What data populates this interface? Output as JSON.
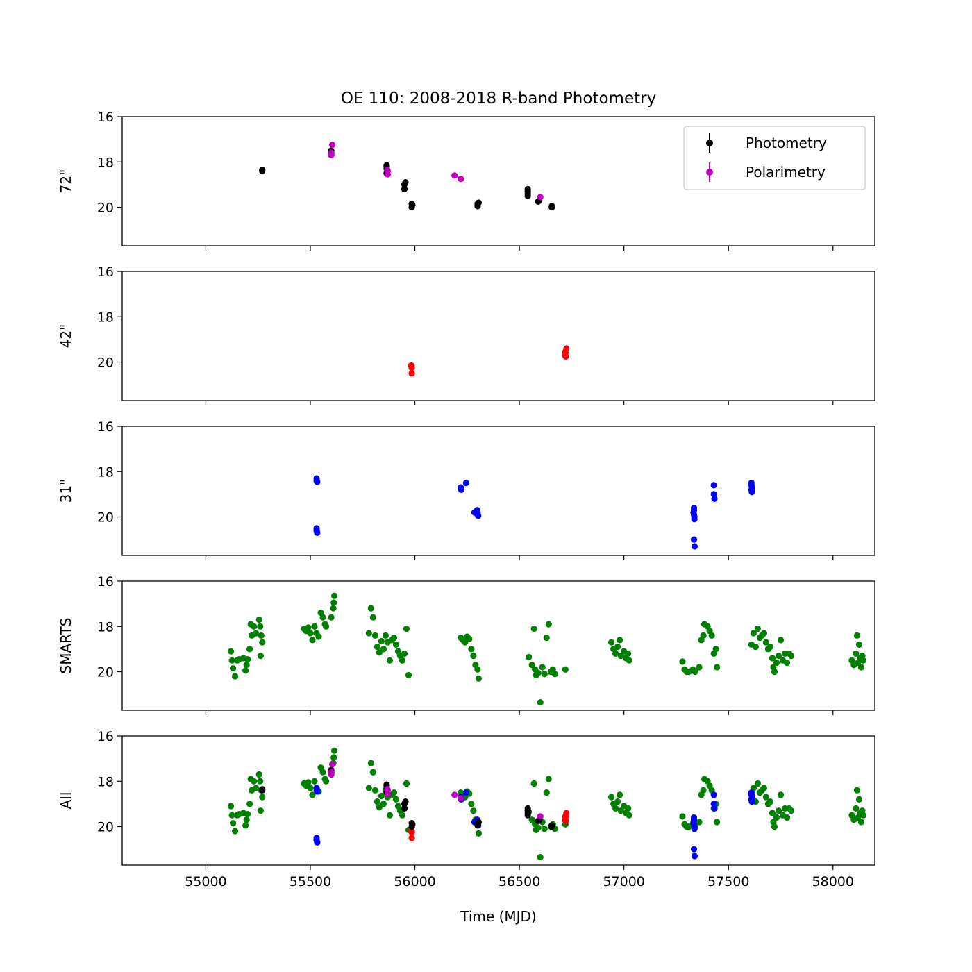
{
  "chart_data": {
    "type": "scatter",
    "title": "OE 110: 2008-2018 R-band Photometry",
    "xlabel": "Time (MJD)",
    "xlim": [
      54600,
      58200
    ],
    "x_ticks": [
      55000,
      55500,
      56000,
      56500,
      57000,
      57500,
      58000
    ],
    "ylim": [
      16,
      21.7
    ],
    "y_inverted": true,
    "y_ticks": [
      16,
      18,
      20
    ],
    "sharex": true,
    "legend": {
      "panel": "72\"",
      "placement": "top-right",
      "entries": [
        {
          "label": "Photometry",
          "color": "#000000",
          "marker": "errorbar-point"
        },
        {
          "label": "Polarimetry",
          "color": "#bf00bf",
          "marker": "errorbar-point"
        }
      ]
    },
    "colors": {
      "photometry": "#000000",
      "polarimetry": "#bf00bf",
      "42in": "#ff0000",
      "31in": "#0000ff",
      "smarts": "#008000"
    },
    "panels": [
      {
        "ylabel": "72\"",
        "series": [
          {
            "key": "photometry",
            "color": "#000000",
            "points": [
              [
                55270,
                18.4
              ],
              [
                55270,
                18.35
              ],
              [
                55600,
                17.6
              ],
              [
                55600,
                17.5
              ],
              [
                55600,
                17.65
              ],
              [
                55865,
                18.2
              ],
              [
                55865,
                18.15
              ],
              [
                55865,
                18.3
              ],
              [
                55865,
                18.5
              ],
              [
                55950,
                19.0
              ],
              [
                55950,
                19.2
              ],
              [
                55955,
                18.9
              ],
              [
                55985,
                19.85
              ],
              [
                55985,
                20.0
              ],
              [
                55988,
                19.9
              ],
              [
                56300,
                19.85
              ],
              [
                56300,
                19.95
              ],
              [
                56305,
                19.8
              ],
              [
                56540,
                19.2
              ],
              [
                56540,
                19.3
              ],
              [
                56540,
                19.5
              ],
              [
                56540,
                19.4
              ],
              [
                56590,
                19.75
              ],
              [
                56595,
                19.7
              ],
              [
                56655,
                20.0
              ],
              [
                56655,
                19.95
              ]
            ]
          },
          {
            "key": "polarimetry",
            "color": "#bf00bf",
            "points": [
              [
                55605,
                17.25
              ],
              [
                55600,
                17.7
              ],
              [
                55600,
                17.6
              ],
              [
                55870,
                18.4
              ],
              [
                55870,
                18.55
              ],
              [
                55868,
                18.35
              ],
              [
                56190,
                18.6
              ],
              [
                56220,
                18.75
              ],
              [
                56600,
                19.55
              ]
            ]
          }
        ]
      },
      {
        "ylabel": "42\"",
        "series": [
          {
            "key": "42in",
            "color": "#ff0000",
            "points": [
              [
                55985,
                20.2
              ],
              [
                55985,
                20.5
              ],
              [
                55985,
                20.25
              ],
              [
                55983,
                20.15
              ],
              [
                56720,
                19.6
              ],
              [
                56725,
                19.4
              ],
              [
                56718,
                19.7
              ],
              [
                56722,
                19.75
              ],
              [
                56720,
                19.55
              ]
            ]
          }
        ]
      },
      {
        "ylabel": "31\"",
        "series": [
          {
            "key": "31in",
            "color": "#0000ff",
            "points": [
              [
                55530,
                18.3
              ],
              [
                55530,
                18.4
              ],
              [
                55533,
                18.45
              ],
              [
                55530,
                20.5
              ],
              [
                55530,
                20.6
              ],
              [
                55533,
                20.7
              ],
              [
                56220,
                18.7
              ],
              [
                56222,
                18.8
              ],
              [
                56245,
                18.5
              ],
              [
                56285,
                19.8
              ],
              [
                56300,
                19.8
              ],
              [
                56300,
                19.9
              ],
              [
                56303,
                19.95
              ],
              [
                56298,
                19.7
              ],
              [
                57335,
                19.6
              ],
              [
                57335,
                19.7
              ],
              [
                57335,
                19.9
              ],
              [
                57337,
                20.0
              ],
              [
                57337,
                20.1
              ],
              [
                57333,
                19.8
              ],
              [
                57335,
                21.0
              ],
              [
                57338,
                21.3
              ],
              [
                57430,
                18.6
              ],
              [
                57430,
                19.0
              ],
              [
                57433,
                19.2
              ],
              [
                57610,
                18.5
              ],
              [
                57610,
                18.6
              ],
              [
                57613,
                18.7
              ],
              [
                57610,
                18.8
              ],
              [
                57612,
                18.9
              ]
            ]
          }
        ]
      },
      {
        "ylabel": "SMARTS",
        "series": [
          {
            "key": "smarts",
            "color": "#008000",
            "points": [
              [
                55120,
                19.1
              ],
              [
                55125,
                19.5
              ],
              [
                55130,
                19.85
              ],
              [
                55140,
                20.2
              ],
              [
                55150,
                19.5
              ],
              [
                55160,
                19.45
              ],
              [
                55180,
                19.4
              ],
              [
                55190,
                19.95
              ],
              [
                55195,
                19.7
              ],
              [
                55200,
                19.45
              ],
              [
                55210,
                19.0
              ],
              [
                55220,
                18.4
              ],
              [
                55215,
                17.9
              ],
              [
                55230,
                18.0
              ],
              [
                55240,
                18.3
              ],
              [
                55255,
                17.7
              ],
              [
                55260,
                18.0
              ],
              [
                55265,
                18.4
              ],
              [
                55270,
                18.7
              ],
              [
                55262,
                19.3
              ],
              [
                55470,
                18.1
              ],
              [
                55480,
                18.2
              ],
              [
                55490,
                18.05
              ],
              [
                55500,
                18.3
              ],
              [
                55510,
                18.6
              ],
              [
                55520,
                18.0
              ],
              [
                55530,
                18.3
              ],
              [
                55540,
                18.45
              ],
              [
                55550,
                17.4
              ],
              [
                55560,
                17.6
              ],
              [
                55570,
                17.9
              ],
              [
                55575,
                18.0
              ],
              [
                55600,
                17.6
              ],
              [
                55610,
                17.2
              ],
              [
                55612,
                16.95
              ],
              [
                55615,
                16.65
              ],
              [
                55780,
                18.3
              ],
              [
                55790,
                17.2
              ],
              [
                55800,
                17.6
              ],
              [
                55810,
                18.4
              ],
              [
                55820,
                18.9
              ],
              [
                55830,
                19.15
              ],
              [
                55840,
                18.65
              ],
              [
                55850,
                19.0
              ],
              [
                55860,
                18.4
              ],
              [
                55870,
                18.7
              ],
              [
                55880,
                19.5
              ],
              [
                55890,
                18.6
              ],
              [
                55900,
                18.5
              ],
              [
                55910,
                18.8
              ],
              [
                55920,
                19.1
              ],
              [
                55930,
                19.3
              ],
              [
                55940,
                19.5
              ],
              [
                55950,
                19.2
              ],
              [
                55960,
                18.1
              ],
              [
                55970,
                20.15
              ],
              [
                56220,
                18.5
              ],
              [
                56230,
                18.6
              ],
              [
                56240,
                18.7
              ],
              [
                56250,
                18.45
              ],
              [
                56260,
                18.55
              ],
              [
                56270,
                19.0
              ],
              [
                56280,
                19.3
              ],
              [
                56290,
                19.7
              ],
              [
                56300,
                19.9
              ],
              [
                56305,
                20.3
              ],
              [
                56545,
                19.35
              ],
              [
                56560,
                19.7
              ],
              [
                56570,
                18.1
              ],
              [
                56575,
                19.9
              ],
              [
                56580,
                20.15
              ],
              [
                56590,
                20.05
              ],
              [
                56600,
                21.35
              ],
              [
                56610,
                19.8
              ],
              [
                56620,
                20.1
              ],
              [
                56630,
                18.5
              ],
              [
                56640,
                17.9
              ],
              [
                56650,
                20.0
              ],
              [
                56660,
                19.9
              ],
              [
                56670,
                20.1
              ],
              [
                56720,
                19.9
              ],
              [
                56940,
                18.7
              ],
              [
                56950,
                19.0
              ],
              [
                56960,
                19.2
              ],
              [
                56970,
                18.9
              ],
              [
                56980,
                18.6
              ],
              [
                56985,
                19.3
              ],
              [
                57000,
                19.1
              ],
              [
                57010,
                19.4
              ],
              [
                57020,
                19.2
              ],
              [
                57025,
                19.5
              ],
              [
                57280,
                19.55
              ],
              [
                57290,
                19.9
              ],
              [
                57300,
                20.0
              ],
              [
                57310,
                20.0
              ],
              [
                57330,
                19.9
              ],
              [
                57340,
                20.0
              ],
              [
                57360,
                19.8
              ],
              [
                57370,
                18.6
              ],
              [
                57380,
                18.4
              ],
              [
                57385,
                17.9
              ],
              [
                57400,
                18.0
              ],
              [
                57410,
                18.2
              ],
              [
                57420,
                18.4
              ],
              [
                57430,
                19.2
              ],
              [
                57440,
                19.0
              ],
              [
                57445,
                19.8
              ],
              [
                57610,
                18.8
              ],
              [
                57620,
                18.3
              ],
              [
                57630,
                18.9
              ],
              [
                57640,
                18.1
              ],
              [
                57650,
                18.5
              ],
              [
                57660,
                18.4
              ],
              [
                57670,
                18.3
              ],
              [
                57680,
                18.7
              ],
              [
                57690,
                19.0
              ],
              [
                57700,
                18.9
              ],
              [
                57710,
                19.4
              ],
              [
                57715,
                19.8
              ],
              [
                57720,
                20.0
              ],
              [
                57730,
                19.6
              ],
              [
                57740,
                19.3
              ],
              [
                57750,
                18.6
              ],
              [
                57760,
                19.5
              ],
              [
                57770,
                19.2
              ],
              [
                57780,
                19.6
              ],
              [
                57790,
                19.2
              ],
              [
                57800,
                19.3
              ],
              [
                58090,
                19.5
              ],
              [
                58100,
                19.7
              ],
              [
                58110,
                19.2
              ],
              [
                58115,
                18.4
              ],
              [
                58120,
                19.6
              ],
              [
                58125,
                18.8
              ],
              [
                58130,
                19.4
              ],
              [
                58135,
                19.8
              ],
              [
                58140,
                19.3
              ],
              [
                58145,
                19.5
              ]
            ]
          }
        ]
      },
      {
        "ylabel": "All",
        "composite": true
      }
    ]
  }
}
